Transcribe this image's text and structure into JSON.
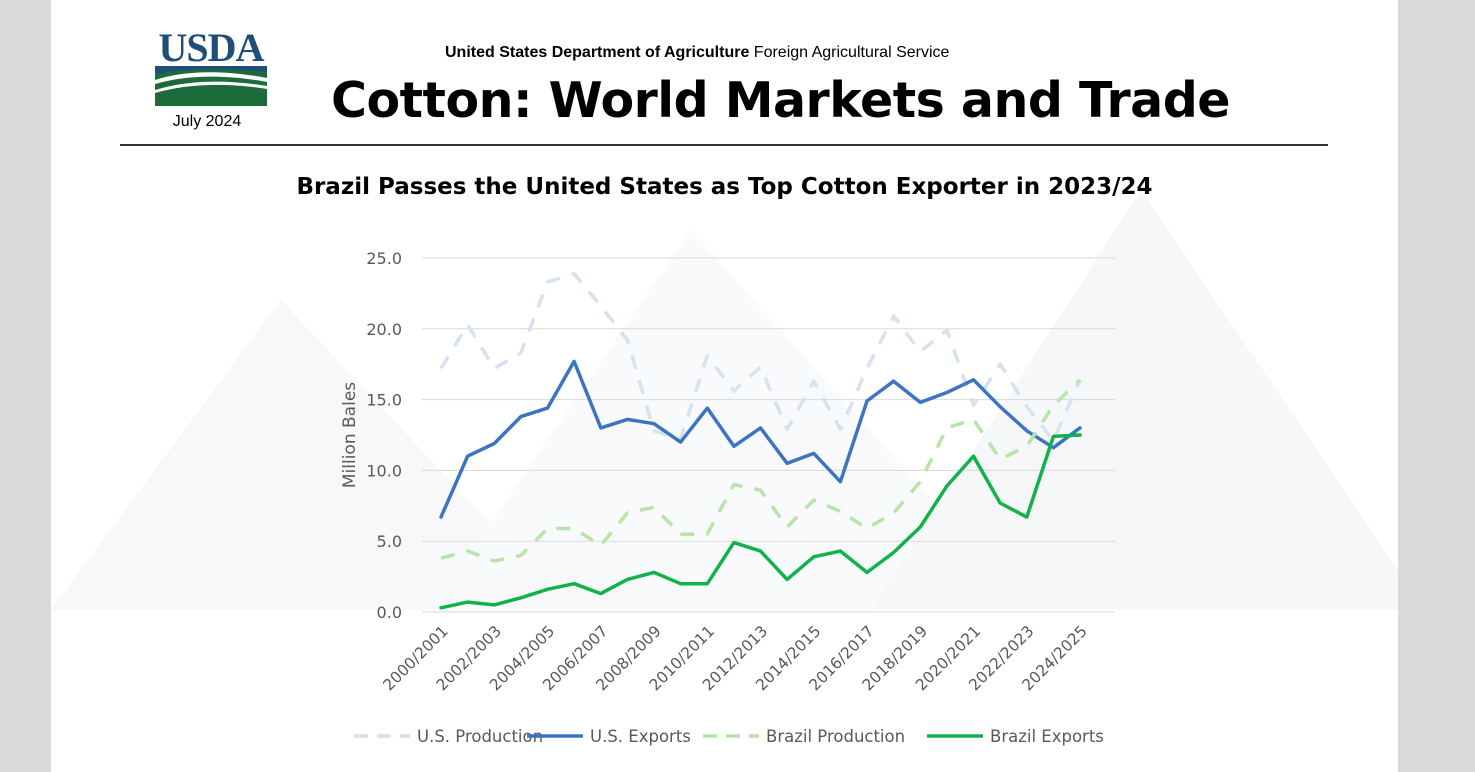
{
  "header": {
    "logo_text": "USDA",
    "date": "July 2024",
    "agency_bold": "United States Department of Agriculture",
    "agency_rest": " Foreign Agricultural Service",
    "report_title": "Cotton: World Markets and Trade"
  },
  "colors": {
    "us_production": "#d6e2ef",
    "us_exports": "#3c74c2",
    "brazil_production": "#b7e4a8",
    "brazil_exports": "#10b24a",
    "grid": "#d9d9d9",
    "axis_text": "#595959"
  },
  "chart_data": {
    "type": "line",
    "title": "Brazil Passes the United States as Top Cotton Exporter in 2023/24",
    "xlabel": "",
    "ylabel": "Million Bales",
    "ylim": [
      0,
      25
    ],
    "yticks": [
      0,
      5,
      10,
      15,
      20,
      25
    ],
    "ytick_labels": [
      "0.0",
      "5.0",
      "10.0",
      "15.0",
      "20.0",
      "25.0"
    ],
    "grid": true,
    "legend_position": "bottom",
    "categories": [
      "2000/2001",
      "2001/2002",
      "2002/2003",
      "2003/2004",
      "2004/2005",
      "2005/2006",
      "2006/2007",
      "2007/2008",
      "2008/2009",
      "2009/2010",
      "2010/2011",
      "2011/2012",
      "2012/2013",
      "2013/2014",
      "2014/2015",
      "2015/2016",
      "2016/2017",
      "2017/2018",
      "2018/2019",
      "2019/2020",
      "2020/2021",
      "2021/2022",
      "2022/2023",
      "2023/2024",
      "2024/2025"
    ],
    "tick_labels": [
      "2000/2001",
      "2002/2003",
      "2004/2005",
      "2006/2007",
      "2008/2009",
      "2010/2011",
      "2012/2013",
      "2014/2015",
      "2016/2017",
      "2018/2019",
      "2020/2021",
      "2022/2023",
      "2024/2025"
    ],
    "series": [
      {
        "name": "U.S. Production",
        "style": "dashed",
        "color_key": "us_production",
        "values": [
          17.2,
          20.3,
          17.2,
          18.3,
          23.3,
          23.9,
          21.6,
          19.2,
          12.8,
          12.2,
          18.1,
          15.6,
          17.3,
          12.9,
          16.3,
          12.9,
          17.2,
          20.9,
          18.4,
          19.9,
          14.6,
          17.5,
          14.5,
          12.1,
          16.4
        ]
      },
      {
        "name": "U.S. Exports",
        "style": "solid",
        "color_key": "us_exports",
        "values": [
          6.7,
          11.0,
          11.9,
          13.8,
          14.4,
          17.7,
          13.0,
          13.6,
          13.3,
          12.0,
          14.4,
          11.7,
          13.0,
          10.5,
          11.2,
          9.2,
          14.9,
          16.3,
          14.8,
          15.5,
          16.4,
          14.5,
          12.8,
          11.6,
          13.0
        ]
      },
      {
        "name": "Brazil Production",
        "style": "dashed",
        "color_key": "brazil_production",
        "values": [
          3.8,
          4.3,
          3.6,
          4.0,
          5.9,
          5.9,
          4.7,
          7.0,
          7.4,
          5.5,
          5.5,
          9.0,
          8.6,
          6.0,
          7.9,
          7.1,
          5.9,
          7.0,
          9.2,
          13.0,
          13.6,
          10.8,
          11.7,
          14.6,
          16.4
        ]
      },
      {
        "name": "Brazil Exports",
        "style": "solid",
        "color_key": "brazil_exports",
        "values": [
          0.3,
          0.7,
          0.5,
          1.0,
          1.6,
          2.0,
          1.3,
          2.3,
          2.8,
          2.0,
          2.0,
          4.9,
          4.3,
          2.3,
          3.9,
          4.3,
          2.8,
          4.2,
          6.0,
          8.9,
          11.0,
          7.7,
          6.7,
          12.4,
          12.5
        ]
      }
    ]
  }
}
